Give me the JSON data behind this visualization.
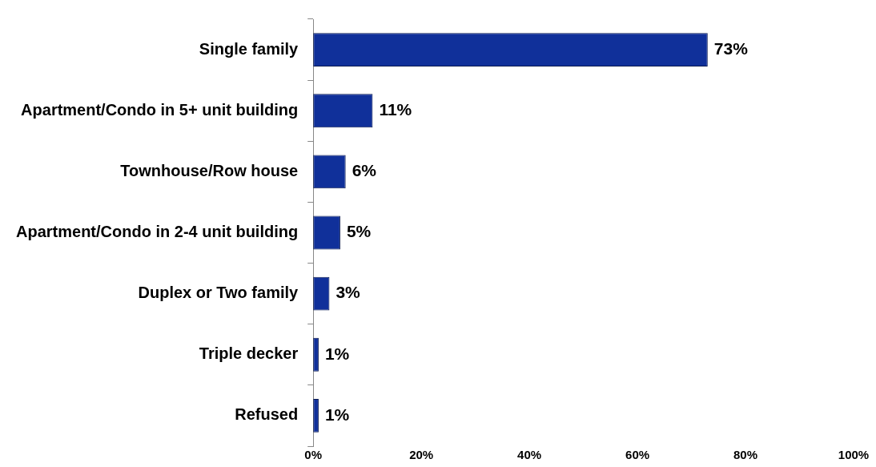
{
  "chart_data": {
    "type": "bar",
    "orientation": "horizontal",
    "categories": [
      "Single family",
      "Apartment/Condo in 5+ unit building",
      "Townhouse/Row house",
      "Apartment/Condo in 2-4 unit building",
      "Duplex or Two family",
      "Triple decker",
      "Refused"
    ],
    "values": [
      73,
      11,
      6,
      5,
      3,
      1,
      1
    ],
    "value_labels": [
      "73%",
      "11%",
      "6%",
      "5%",
      "3%",
      "1%",
      "1%"
    ],
    "color": "#10309a",
    "xlim": [
      0,
      100
    ],
    "xticks": [
      {
        "value": 0,
        "label": "0%"
      },
      {
        "value": 20,
        "label": "20%"
      },
      {
        "value": 40,
        "label": "40%"
      },
      {
        "value": 60,
        "label": "60%"
      },
      {
        "value": 80,
        "label": "80%"
      },
      {
        "value": 100,
        "label": "100%"
      }
    ],
    "grid": false,
    "legend": false
  }
}
